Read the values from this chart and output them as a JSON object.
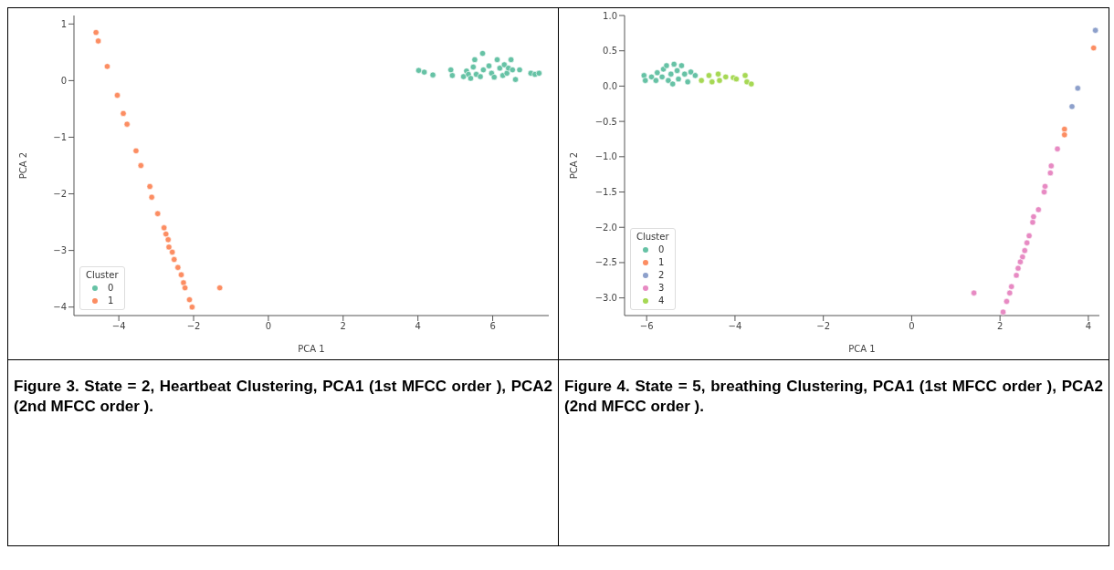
{
  "chart_data": [
    {
      "type": "scatter",
      "xlabel": "PCA 1",
      "ylabel": "PCA 2",
      "legend_title": "Cluster",
      "legend": "bottom left",
      "grid": false,
      "marker": "circle",
      "xlim": [
        -5.2,
        7.5
      ],
      "ylim": [
        -4.15,
        1.15
      ],
      "xticks": [
        -4,
        -2,
        0,
        2,
        4,
        6
      ],
      "yticks": [
        -4,
        -3,
        -2,
        -1,
        0,
        1
      ],
      "annotations": [
        "Figure 3. State = 2, Heartbeat Clustering, PCA1 (1st MFCC order ), PCA2 (2nd MFCC order )."
      ],
      "series": [
        {
          "name": "0",
          "color": "#66c2a5",
          "x": [
            4.02,
            4.17,
            4.4,
            4.88,
            4.92,
            5.22,
            5.3,
            5.35,
            5.41,
            5.48,
            5.52,
            5.56,
            5.67,
            5.73,
            5.75,
            5.9,
            5.97,
            6.04,
            6.12,
            6.19,
            6.27,
            6.31,
            6.38,
            6.42,
            6.49,
            6.53,
            6.61,
            6.72,
            7.02,
            7.13,
            7.24
          ],
          "values": [
            0.18,
            0.15,
            0.1,
            0.19,
            0.09,
            0.07,
            0.17,
            0.11,
            0.04,
            0.24,
            0.37,
            0.11,
            0.07,
            0.48,
            0.19,
            0.26,
            0.13,
            0.06,
            0.37,
            0.22,
            0.09,
            0.28,
            0.13,
            0.22,
            0.37,
            0.19,
            0.02,
            0.19,
            0.13,
            0.11,
            0.13
          ]
        },
        {
          "name": "1",
          "color": "#fc8d62",
          "x": [
            -4.61,
            -4.55,
            -4.31,
            -4.04,
            -3.88,
            -3.78,
            -3.54,
            -3.41,
            -3.17,
            -3.12,
            -2.96,
            -2.79,
            -2.74,
            -2.68,
            -2.66,
            -2.57,
            -2.52,
            -2.42,
            -2.33,
            -2.27,
            -2.23,
            -2.11,
            -2.04,
            -1.3
          ],
          "values": [
            0.85,
            0.7,
            0.25,
            -0.26,
            -0.58,
            -0.77,
            -1.24,
            -1.5,
            -1.87,
            -2.06,
            -2.35,
            -2.6,
            -2.71,
            -2.81,
            -2.94,
            -3.03,
            -3.16,
            -3.3,
            -3.43,
            -3.57,
            -3.66,
            -3.87,
            -4.0,
            -3.66
          ]
        }
      ]
    },
    {
      "type": "scatter",
      "xlabel": "PCA 1",
      "ylabel": "PCA 2",
      "legend_title": "Cluster",
      "legend": "bottom left",
      "grid": false,
      "marker": "circle",
      "xlim": [
        -6.5,
        4.25
      ],
      "ylim": [
        -3.25,
        1.0
      ],
      "xticks": [
        -6,
        -4,
        -2,
        0,
        2,
        4
      ],
      "yticks": [
        {
          "value": -3,
          "label": "−3.0"
        },
        {
          "value": -2.5,
          "label": "−2.5"
        },
        {
          "value": -2,
          "label": "−2.0"
        },
        {
          "value": -1.5,
          "label": "−1.5"
        },
        {
          "value": -1,
          "label": "−1.0"
        },
        {
          "value": -0.5,
          "label": "−0.5"
        },
        {
          "value": 0,
          "label": "0.0"
        },
        {
          "value": 0.5,
          "label": "0.5"
        },
        {
          "value": 1,
          "label": "1.0"
        }
      ],
      "annotations": [
        "Figure 4. State = 5, breathing Clustering, PCA1 (1st MFCC order ), PCA2 (2nd MFCC order )."
      ],
      "series": [
        {
          "name": "0",
          "color": "#66c2a5",
          "x": [
            -6.06,
            -6.03,
            -5.89,
            -5.79,
            -5.76,
            -5.65,
            -5.62,
            -5.55,
            -5.51,
            -5.45,
            -5.41,
            -5.38,
            -5.31,
            -5.28,
            -5.21,
            -5.14,
            -5.07,
            -5.0,
            -4.9
          ],
          "values": [
            0.15,
            0.08,
            0.13,
            0.08,
            0.19,
            0.13,
            0.24,
            0.29,
            0.08,
            0.17,
            0.03,
            0.31,
            0.22,
            0.1,
            0.29,
            0.17,
            0.06,
            0.2,
            0.15
          ]
        },
        {
          "name": "1",
          "color": "#fc8d62",
          "x": [
            4.12,
            3.46,
            3.46
          ],
          "values": [
            0.54,
            -0.61,
            -0.69
          ]
        },
        {
          "name": "2",
          "color": "#8da0cb",
          "x": [
            4.16,
            3.76,
            3.63
          ],
          "values": [
            0.79,
            -0.03,
            -0.29
          ]
        },
        {
          "name": "3",
          "color": "#e78ac3",
          "x": [
            3.3,
            3.16,
            3.14,
            3.02,
            3.0,
            2.87,
            2.76,
            2.74,
            2.66,
            2.61,
            2.56,
            2.51,
            2.46,
            2.41,
            2.37,
            2.26,
            2.22,
            2.15,
            2.07,
            1.41
          ],
          "values": [
            -0.89,
            -1.13,
            -1.23,
            -1.42,
            -1.5,
            -1.75,
            -1.85,
            -1.93,
            -2.12,
            -2.22,
            -2.33,
            -2.42,
            -2.49,
            -2.58,
            -2.68,
            -2.84,
            -2.93,
            -3.05,
            -3.2,
            -2.93
          ]
        },
        {
          "name": "4",
          "color": "#a6d854",
          "x": [
            -4.76,
            -4.59,
            -4.52,
            -4.38,
            -4.35,
            -4.21,
            -4.04,
            -3.97,
            -3.77,
            -3.73,
            -3.63
          ],
          "values": [
            0.08,
            0.15,
            0.06,
            0.17,
            0.08,
            0.13,
            0.12,
            0.1,
            0.15,
            0.06,
            0.03
          ]
        }
      ]
    }
  ]
}
